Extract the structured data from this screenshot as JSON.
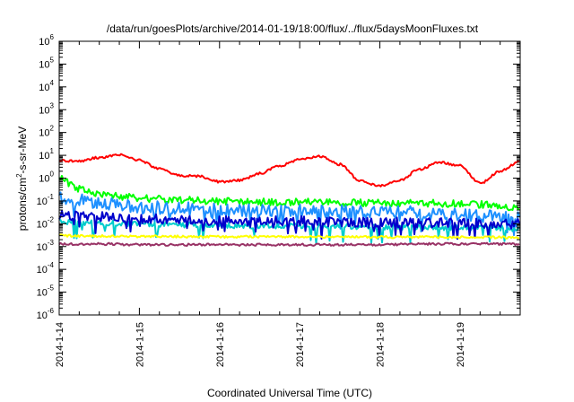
{
  "chart_data": {
    "type": "line",
    "title": "/data/run/goesPlots/archive/2014-01-19/18:00/flux/../flux/5daysMoonFluxes.txt",
    "xlabel": "Coordinated Universal Time (UTC)",
    "ylabel": "protons/cm²-s-sr-MeV",
    "ylabel_parts": {
      "pre": "protons/cm",
      "sup": "2",
      "post": "-s-sr-MeV"
    },
    "y_scale": "log",
    "ylim": [
      1e-06,
      1000000.0
    ],
    "y_ticks": [
      {
        "value": 1e-06,
        "base": "10",
        "exp": "-6"
      },
      {
        "value": 1e-05,
        "base": "10",
        "exp": "-5"
      },
      {
        "value": 0.0001,
        "base": "10",
        "exp": "-4"
      },
      {
        "value": 0.001,
        "base": "10",
        "exp": "-3"
      },
      {
        "value": 0.01,
        "base": "10",
        "exp": "-2"
      },
      {
        "value": 0.1,
        "base": "10",
        "exp": "-1"
      },
      {
        "value": 1,
        "base": "10",
        "exp": "0"
      },
      {
        "value": 10,
        "base": "10",
        "exp": "1"
      },
      {
        "value": 100,
        "base": "10",
        "exp": "2"
      },
      {
        "value": 1000,
        "base": "10",
        "exp": "3"
      },
      {
        "value": 10000,
        "base": "10",
        "exp": "4"
      },
      {
        "value": 100000,
        "base": "10",
        "exp": "5"
      },
      {
        "value": 1000000,
        "base": "10",
        "exp": "6"
      }
    ],
    "xlim": [
      "2014-01-14T00:00",
      "2014-01-19T18:00"
    ],
    "x_ticks": [
      "2014-1-14",
      "2014-1-15",
      "2014-1-16",
      "2014-1-17",
      "2014-1-18",
      "2014-1-19"
    ],
    "grid": false,
    "legend": "none",
    "series": [
      {
        "color": "#ff0000",
        "x": [
          "2014-01-14T00:00",
          "2014-01-14T06:00",
          "2014-01-14T12:00",
          "2014-01-14T18:00",
          "2014-01-15T00:00",
          "2014-01-15T06:00",
          "2014-01-15T12:00",
          "2014-01-15T18:00",
          "2014-01-16T00:00",
          "2014-01-16T06:00",
          "2014-01-16T12:00",
          "2014-01-16T18:00",
          "2014-01-17T00:00",
          "2014-01-17T06:00",
          "2014-01-17T12:00",
          "2014-01-17T18:00",
          "2014-01-18T00:00",
          "2014-01-18T06:00",
          "2014-01-18T12:00",
          "2014-01-18T18:00",
          "2014-01-19T00:00",
          "2014-01-19T06:00",
          "2014-01-19T12:00",
          "2014-01-19T18:00"
        ],
        "y": [
          6,
          5.5,
          8,
          11,
          6,
          2.5,
          1.3,
          1.2,
          0.7,
          0.8,
          1.6,
          3.5,
          6.5,
          9,
          4,
          0.8,
          0.45,
          0.8,
          2.5,
          5,
          3.5,
          0.6,
          2,
          5.5
        ]
      },
      {
        "color": "#00ff00",
        "x": [
          "2014-01-14T00:00",
          "2014-01-14T03:00",
          "2014-01-14T06:00",
          "2014-01-14T09:00",
          "2014-01-14T12:00",
          "2014-01-14T18:00",
          "2014-01-15T00:00",
          "2014-01-15T12:00",
          "2014-01-16T00:00",
          "2014-01-16T12:00",
          "2014-01-17T00:00",
          "2014-01-17T12:00",
          "2014-01-18T00:00",
          "2014-01-18T12:00",
          "2014-01-19T00:00",
          "2014-01-19T06:00",
          "2014-01-19T12:00",
          "2014-01-19T18:00"
        ],
        "y": [
          1,
          0.6,
          0.35,
          0.25,
          0.2,
          0.16,
          0.13,
          0.11,
          0.1,
          0.09,
          0.09,
          0.085,
          0.08,
          0.08,
          0.075,
          0.07,
          0.06,
          0.05
        ]
      },
      {
        "color": "#1e90ff",
        "x": [
          "2014-01-14T00:00",
          "2014-01-14T06:00",
          "2014-01-14T12:00",
          "2014-01-14T18:00",
          "2014-01-15T00:00",
          "2014-01-15T12:00",
          "2014-01-16T00:00",
          "2014-01-16T12:00",
          "2014-01-17T00:00",
          "2014-01-17T12:00",
          "2014-01-18T00:00",
          "2014-01-18T12:00",
          "2014-01-19T00:00",
          "2014-01-19T12:00",
          "2014-01-19T18:00"
        ],
        "y": [
          0.15,
          0.1,
          0.085,
          0.07,
          0.055,
          0.045,
          0.04,
          0.038,
          0.035,
          0.033,
          0.03,
          0.03,
          0.025,
          0.022,
          0.018
        ]
      },
      {
        "color": "#00cccc",
        "x": [
          "2014-01-14T00:00",
          "2014-01-14T12:00",
          "2014-01-15T00:00",
          "2014-01-15T12:00",
          "2014-01-16T00:00",
          "2014-01-16T12:00",
          "2014-01-17T00:00",
          "2014-01-17T12:00",
          "2014-01-18T00:00",
          "2014-01-18T12:00",
          "2014-01-19T00:00",
          "2014-01-19T12:00",
          "2014-01-19T18:00"
        ],
        "y": [
          0.012,
          0.011,
          0.01,
          0.009,
          0.0085,
          0.008,
          0.0078,
          0.0075,
          0.0072,
          0.007,
          0.0068,
          0.0065,
          0.006
        ]
      },
      {
        "color": "#0000cc",
        "x": [
          "2014-01-14T00:00",
          "2014-01-14T06:00",
          "2014-01-14T12:00",
          "2014-01-15T00:00",
          "2014-01-15T12:00",
          "2014-01-16T00:00",
          "2014-01-16T12:00",
          "2014-01-17T00:00",
          "2014-01-17T12:00",
          "2014-01-18T00:00",
          "2014-01-18T12:00",
          "2014-01-19T00:00",
          "2014-01-19T12:00",
          "2014-01-19T18:00"
        ],
        "y": [
          0.025,
          0.022,
          0.02,
          0.017,
          0.015,
          0.014,
          0.013,
          0.013,
          0.012,
          0.012,
          0.011,
          0.011,
          0.01,
          0.01
        ]
      },
      {
        "color": "#ffff00",
        "x": [
          "2014-01-14T00:00",
          "2014-01-15T00:00",
          "2014-01-16T00:00",
          "2014-01-17T00:00",
          "2014-01-18T00:00",
          "2014-01-19T00:00",
          "2014-01-19T18:00"
        ],
        "y": [
          0.003,
          0.0028,
          0.0027,
          0.0027,
          0.0026,
          0.0026,
          0.0025
        ]
      },
      {
        "color": "#993366",
        "x": [
          "2014-01-14T00:00",
          "2014-01-14T12:00",
          "2014-01-15T00:00",
          "2014-01-15T12:00",
          "2014-01-16T00:00",
          "2014-01-16T12:00",
          "2014-01-17T00:00",
          "2014-01-17T12:00",
          "2014-01-18T00:00",
          "2014-01-18T12:00",
          "2014-01-19T00:00",
          "2014-01-19T12:00",
          "2014-01-19T18:00"
        ],
        "y": [
          0.0013,
          0.0013,
          0.0012,
          0.0012,
          0.0012,
          0.0012,
          0.0012,
          0.0012,
          0.0012,
          0.0013,
          0.0013,
          0.0013,
          0.0013
        ]
      }
    ]
  }
}
